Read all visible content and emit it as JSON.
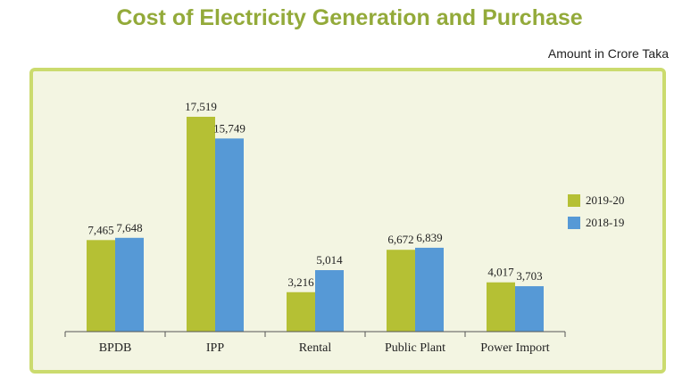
{
  "title": "Cost of Electricity Generation and Purchase",
  "unit_label": "Amount in Crore Taka",
  "colors": {
    "series_2019_20": "#b5c034",
    "series_2018_19": "#5699d6",
    "title": "#93aa3a",
    "frame_border": "#cbdb6e",
    "frame_bg": "#f3f5e2"
  },
  "chart_data": {
    "type": "bar",
    "title": "Cost of Electricity Generation and Purchase",
    "ylabel": "Amount in Crore Taka",
    "xlabel": "",
    "categories": [
      "BPDB",
      "IPP",
      "Rental",
      "Public Plant",
      "Power Import"
    ],
    "series": [
      {
        "name": "2019-20",
        "values": [
          7465,
          17519,
          3216,
          6672,
          4017
        ],
        "labels": [
          "7,465",
          "17,519",
          "3,216",
          "6,672",
          "4,017"
        ]
      },
      {
        "name": "2018-19",
        "values": [
          7648,
          15749,
          5014,
          6839,
          3703
        ],
        "labels": [
          "7,648",
          "15,749",
          "5,014",
          "6,839",
          "3,703"
        ]
      }
    ],
    "ylim": [
      0,
      17519
    ],
    "grid": false,
    "legend_position": "right"
  }
}
